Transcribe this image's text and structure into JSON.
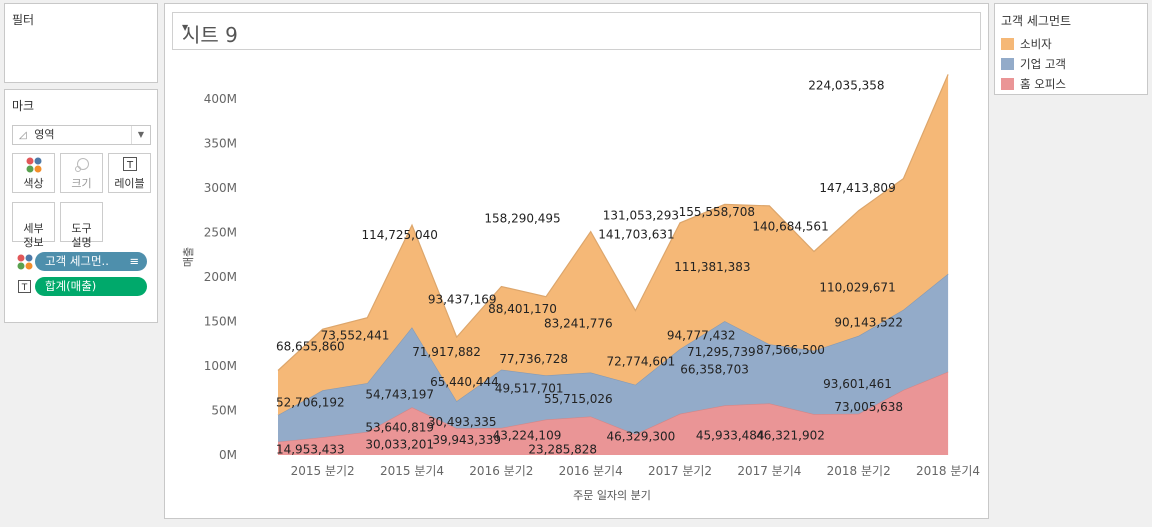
{
  "filters": {
    "title": "필터"
  },
  "marks": {
    "title": "마크",
    "mark_type": "영역",
    "buttons": {
      "color": "색상",
      "size": "크기",
      "label": "레이블",
      "detail": "세부\n정보",
      "tooltip": "도구\n설명"
    },
    "pills": [
      {
        "label": "고객 세그먼..",
        "color": "#4e8fac"
      },
      {
        "label": "합계(매출)",
        "color": "#00a96b"
      }
    ]
  },
  "sheet": {
    "title": "시트 9"
  },
  "legend": {
    "title": "고객 세그먼트",
    "items": [
      {
        "label": "소비자",
        "color": "#f5b877"
      },
      {
        "label": "기업 고객",
        "color": "#93abc9"
      },
      {
        "label": "홈 오피스",
        "color": "#ea9596"
      }
    ]
  },
  "chart_data": {
    "type": "area",
    "stacked": true,
    "ylabel": "매출",
    "xlabel": "주문 일자의 분기",
    "y_ticks": [
      "0M",
      "50M",
      "100M",
      "150M",
      "200M",
      "250M",
      "300M",
      "350M",
      "400M"
    ],
    "ylim": [
      0,
      420000000
    ],
    "x_tick_labels": [
      "2015 분기2",
      "2015 분기4",
      "2016 분기2",
      "2016 분기4",
      "2017 분기2",
      "2017 분기4",
      "2018 분기2",
      "2018 분기4"
    ],
    "x_tick_indices": [
      1,
      3,
      5,
      7,
      9,
      11,
      13,
      15
    ],
    "x_points": 16,
    "series": [
      {
        "name": "홈 오피스",
        "color": "#ea9596",
        "values": [
          14953433,
          20000000,
          26000000,
          53640819,
          30033201,
          30493335,
          39943339,
          43224109,
          23285828,
          46329300,
          55715026,
          58000000,
          45933484,
          46321902,
          73005638,
          93601461
        ]
      },
      {
        "name": "기업 고객",
        "color": "#93abc9",
        "values": [
          30000000,
          52706192,
          54743197,
          90000000,
          30493335,
          65440444,
          49517701,
          49517701,
          55715026,
          72774601,
          94777432,
          66358703,
          71295739,
          87566500,
          90143522,
          110029671
        ]
      },
      {
        "name": "소비자",
        "color": "#f5b877",
        "values": [
          50000000,
          68655860,
          73552441,
          114725040,
          71917882,
          93437169,
          88401170,
          158290495,
          83241776,
          141703631,
          131053293,
          155558708,
          111381383,
          140684561,
          147413809,
          224035358
        ]
      }
    ],
    "data_labels": [
      {
        "text": "68,655,860",
        "x": 1,
        "y": 122000000
      },
      {
        "text": "73,552,441",
        "x": 3,
        "y": 134000000
      },
      {
        "text": "114,725,040",
        "x": 5,
        "y": 247000000
      },
      {
        "text": "93,437,169",
        "x": 7.8,
        "y": 175000000
      },
      {
        "text": "158,290,495",
        "x": 10.5,
        "y": 266000000
      },
      {
        "text": "88,401,170",
        "x": 10.5,
        "y": 164000000
      },
      {
        "text": "71,917,882",
        "x": 7.1,
        "y": 116000000
      },
      {
        "text": "83,241,776",
        "x": 13,
        "y": 148000000
      },
      {
        "text": "131,053,293",
        "x": 15.8,
        "y": 269000000
      },
      {
        "text": "141,703,631",
        "x": 15.6,
        "y": 248000000
      },
      {
        "text": "155,558,708",
        "x": 19.2,
        "y": 273000000
      },
      {
        "text": "111,381,383",
        "x": 19,
        "y": 211000000
      },
      {
        "text": "140,684,561",
        "x": 22.5,
        "y": 257000000
      },
      {
        "text": "147,413,809",
        "x": 25.5,
        "y": 300000000
      },
      {
        "text": "224,035,358",
        "x": 25,
        "y": 415000000
      },
      {
        "text": "110,029,671",
        "x": 25.5,
        "y": 188000000
      },
      {
        "text": "90,143,522",
        "x": 26,
        "y": 149000000
      },
      {
        "text": "87,566,500",
        "x": 22.5,
        "y": 118000000
      },
      {
        "text": "52,706,192",
        "x": 1,
        "y": 59000000
      },
      {
        "text": "54,743,197",
        "x": 5,
        "y": 68000000
      },
      {
        "text": "65,440,444",
        "x": 7.9,
        "y": 82000000
      },
      {
        "text": "77,736,728",
        "x": 11,
        "y": 108000000
      },
      {
        "text": "49,517,701",
        "x": 10.8,
        "y": 75000000
      },
      {
        "text": "55,715,026",
        "x": 13,
        "y": 63000000
      },
      {
        "text": "72,774,601",
        "x": 15.8,
        "y": 105000000
      },
      {
        "text": "94,777,432",
        "x": 18.5,
        "y": 134000000
      },
      {
        "text": "71,295,739",
        "x": 19.4,
        "y": 116000000
      },
      {
        "text": "66,358,703",
        "x": 19.1,
        "y": 96000000
      },
      {
        "text": "93,601,461",
        "x": 25.5,
        "y": 80000000
      },
      {
        "text": "73,005,638",
        "x": 26,
        "y": 54000000
      },
      {
        "text": "53,640,819",
        "x": 5,
        "y": 31000000
      },
      {
        "text": "30,493,335",
        "x": 7.8,
        "y": 37000000
      },
      {
        "text": "14,953,433",
        "x": 1,
        "y": 6000000
      },
      {
        "text": "30,033,201",
        "x": 5,
        "y": 12000000
      },
      {
        "text": "39,943,339",
        "x": 8,
        "y": 17000000
      },
      {
        "text": "43,224,109",
        "x": 10.7,
        "y": 22000000
      },
      {
        "text": "23,285,828",
        "x": 12.3,
        "y": 6000000
      },
      {
        "text": "46,329,300",
        "x": 15.8,
        "y": 21000000
      },
      {
        "text": "45,933,484",
        "x": 19.8,
        "y": 22000000
      },
      {
        "text": "46,321,902",
        "x": 22.5,
        "y": 22000000
      }
    ]
  }
}
